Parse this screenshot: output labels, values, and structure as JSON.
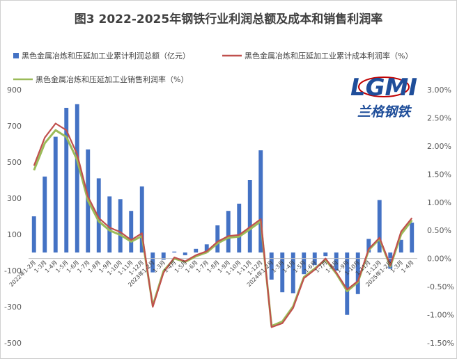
{
  "chart_data": {
    "type": "bar",
    "title": "图3 2022-2025年钢铁行业利润总额及成本和销售利润率",
    "logo": {
      "brand": "LGMI",
      "name": "兰格钢铁"
    },
    "left_axis": {
      "ylim": [
        -500,
        900
      ],
      "ticks": [
        "900",
        "700",
        "500",
        "300",
        "100",
        "-100",
        "-300",
        "-500"
      ]
    },
    "right_axis": {
      "ylim": [
        -1.5,
        3.0
      ],
      "ticks": [
        "3.00%",
        "2.50%",
        "2.00%",
        "1.50%",
        "1.00%",
        "0.50%",
        "0.00%",
        "-0.50%",
        "-1.00%",
        "-1.50%"
      ]
    },
    "categories": [
      "2022年1-2月",
      "1-3月",
      "1-4月",
      "1-5月",
      "1-6月",
      "1-7月",
      "1-8月",
      "1-9月",
      "1-10月",
      "1-11月",
      "1-12月",
      "2023年1-2月",
      "1-3月",
      "1-4月",
      "1-5月",
      "1-6月",
      "1-7月",
      "1-8月",
      "1-9月",
      "1-10月",
      "1-11月",
      "1-12月",
      "2024年1-2月",
      "1-3月",
      "1-4月",
      "1-5月",
      "1-6月",
      "1-7月",
      "1-8月",
      "1-9月",
      "1-10月",
      "1-11月",
      "1-12月",
      "2025年1-2月",
      "1-3月",
      "1-4月"
    ],
    "series": [
      {
        "name": "黑色金属冶炼和压延加工业累计利润总额（亿元）",
        "type": "bar",
        "axis": "left",
        "color": "#4472c4",
        "values": [
          200,
          420,
          640,
          800,
          820,
          570,
          410,
          310,
          295,
          230,
          365,
          -110,
          -40,
          5,
          -15,
          20,
          45,
          150,
          230,
          270,
          400,
          565,
          -150,
          -220,
          -225,
          -120,
          -70,
          -20,
          -100,
          -345,
          -230,
          75,
          290,
          -90,
          70,
          165
        ]
      },
      {
        "name": "黑色金属冶炼和压延加工业累计成本利润率（%）",
        "type": "line",
        "axis": "right",
        "color": "#c0504d",
        "values": [
          1.65,
          2.15,
          2.4,
          2.28,
          1.85,
          1.1,
          0.72,
          0.55,
          0.47,
          0.33,
          0.45,
          -0.86,
          -0.25,
          0.02,
          -0.05,
          0.06,
          0.13,
          0.3,
          0.4,
          0.42,
          0.56,
          0.7,
          -1.22,
          -1.15,
          -0.88,
          -0.35,
          -0.2,
          0.0,
          -0.25,
          -0.55,
          -0.4,
          0.17,
          0.37,
          -0.12,
          0.48,
          0.72
        ]
      },
      {
        "name": "黑色金属冶炼和压延加工业销售利润率（%）",
        "type": "line",
        "axis": "right",
        "color": "#9bbb59",
        "values": [
          1.57,
          2.05,
          2.28,
          2.16,
          1.75,
          1.03,
          0.66,
          0.5,
          0.42,
          0.3,
          0.4,
          -0.84,
          -0.22,
          0.0,
          -0.06,
          0.04,
          0.11,
          0.27,
          0.37,
          0.39,
          0.52,
          0.66,
          -1.2,
          -1.12,
          -0.85,
          -0.33,
          -0.18,
          -0.02,
          -0.27,
          -0.58,
          -0.42,
          0.15,
          0.35,
          -0.14,
          0.43,
          0.68
        ]
      }
    ],
    "grid": false,
    "legend_position": "top"
  }
}
